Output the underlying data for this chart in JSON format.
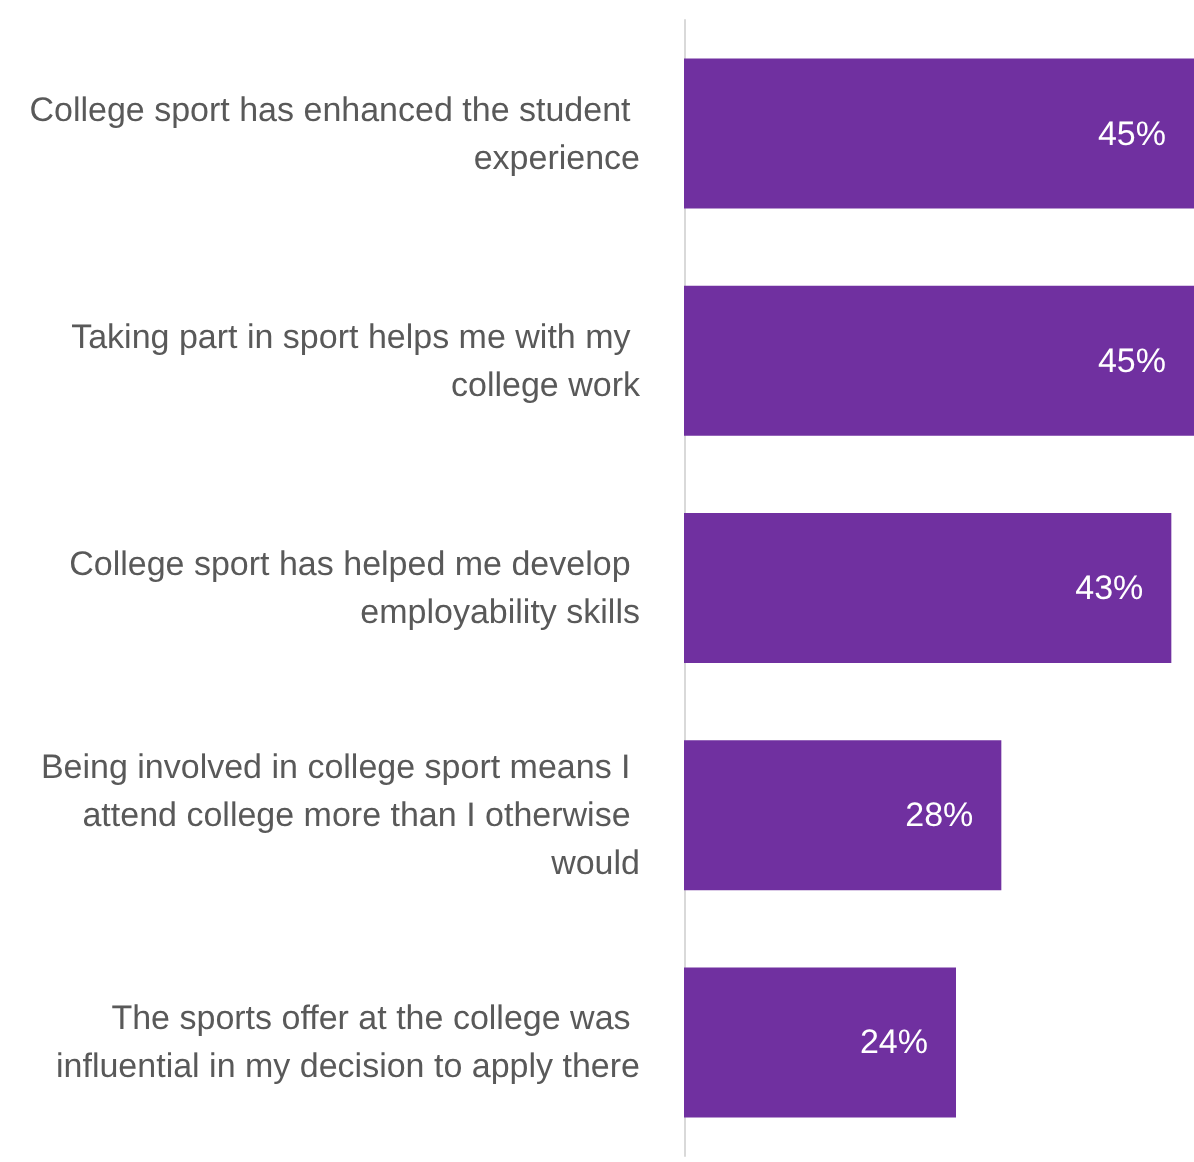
{
  "chart_data": {
    "type": "bar",
    "orientation": "horizontal",
    "categories": [
      "College sport has enhanced the student experience",
      "Taking part in sport helps me with my college work",
      "College sport has helped me develop employability skills",
      "Being involved in college sport means I attend college more than I otherwise would",
      "The sports offer at the college was influential in my decision to apply there"
    ],
    "values": [
      45,
      45,
      43,
      28,
      24
    ],
    "value_labels": [
      "45%",
      "45%",
      "43%",
      "28%",
      "24%"
    ],
    "color": "#7030a0"
  }
}
